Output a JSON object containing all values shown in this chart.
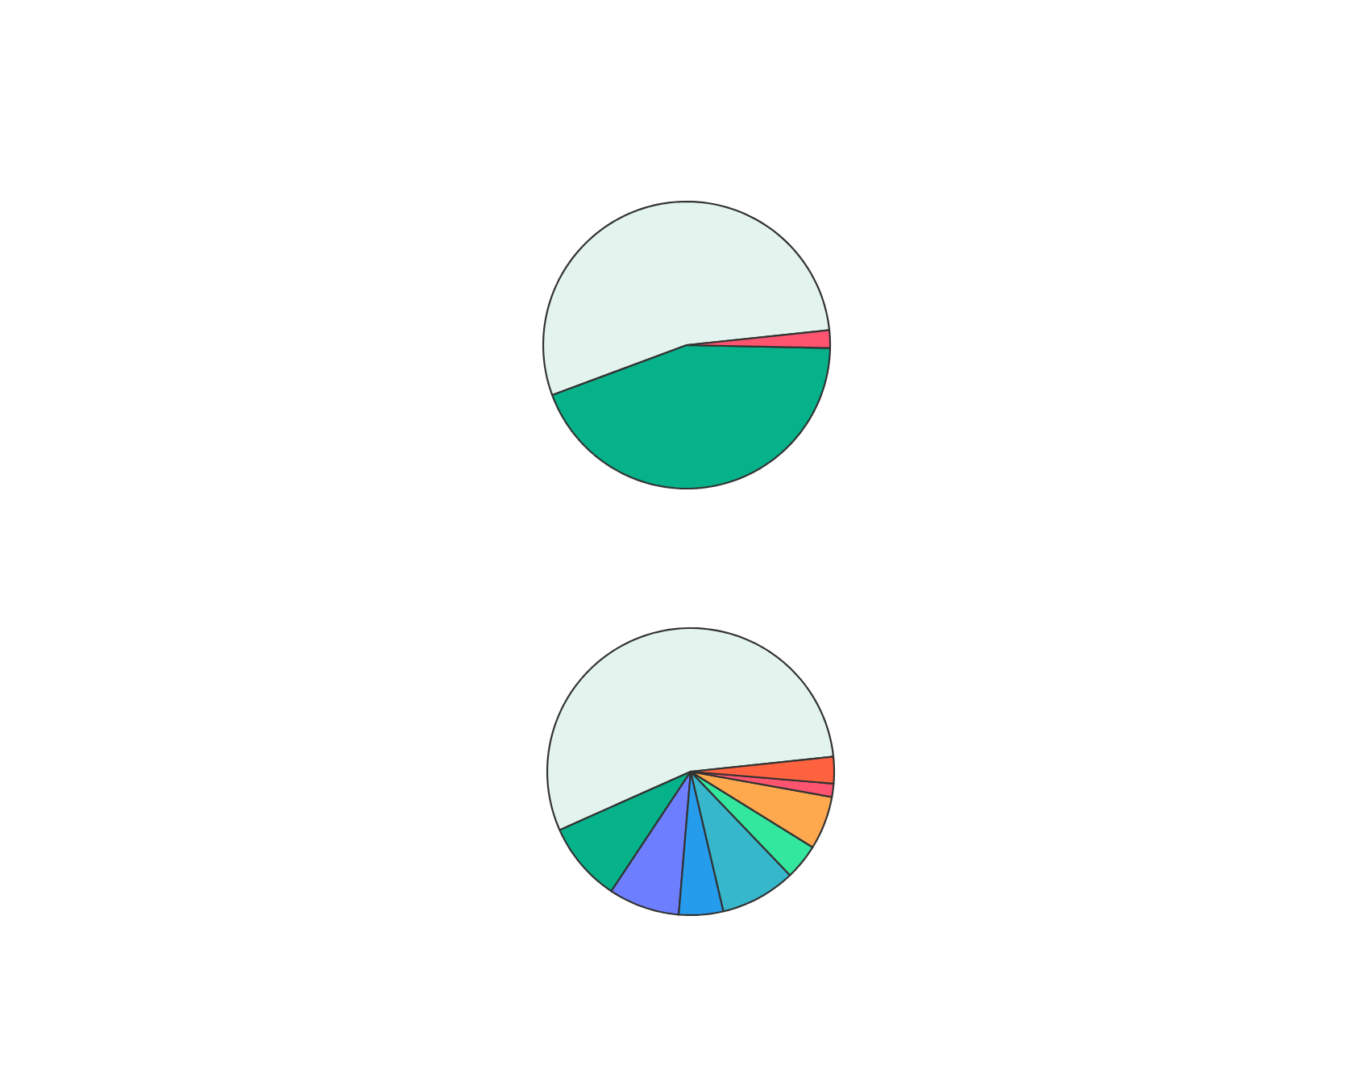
{
  "chart_data": [
    {
      "type": "pie",
      "categories": [
        null,
        null,
        null
      ],
      "values": [
        54,
        44,
        2
      ],
      "colors": [
        "#e3f4ee",
        "#05b28a",
        "#ff5470"
      ]
    },
    {
      "type": "pie",
      "categories": [
        null,
        null,
        null,
        null,
        null,
        null,
        null,
        null,
        null
      ],
      "values": [
        55,
        9,
        8,
        5,
        8.5,
        4,
        6,
        1.5,
        3
      ],
      "colors": [
        "#e3f4ee",
        "#05b28a",
        "#6d7fff",
        "#269cec",
        "#36b7cc",
        "#33e79f",
        "#ffa94f",
        "#ff5470",
        "#ff623e"
      ]
    }
  ]
}
